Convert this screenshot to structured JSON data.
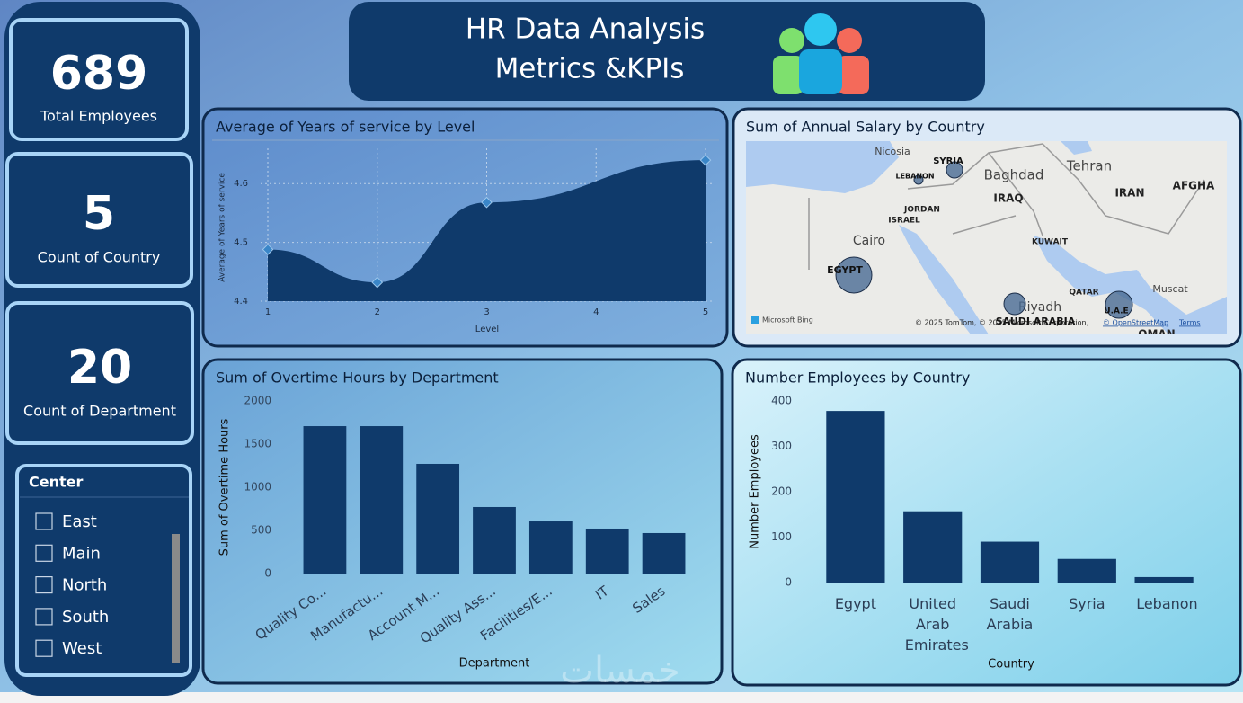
{
  "header": {
    "title_line1": "HR Data Analysis",
    "title_line2": "Metrics &KPIs"
  },
  "kpis": [
    {
      "value": 689,
      "label": "Total Employees"
    },
    {
      "value": 5,
      "label": "Count of Country"
    },
    {
      "value": 20,
      "label": "Count of Department"
    }
  ],
  "slicer": {
    "title": "Center",
    "items": [
      "East",
      "Main",
      "North",
      "South",
      "West"
    ]
  },
  "watermark": "خمسات",
  "chart_data": [
    {
      "type": "line",
      "title": "Average of Years of service by Level",
      "x_label": "Level",
      "y_label": "Average of Years of service",
      "x": [
        1,
        2,
        3,
        5
      ],
      "values": [
        4.488,
        4.432,
        4.568,
        4.64
      ],
      "color": "#0f3a6b",
      "xlim": [
        1,
        5
      ],
      "ylim": [
        4.4,
        4.66
      ],
      "xticks": [
        1,
        2,
        3,
        4,
        5
      ],
      "yticks": [
        4.4,
        4.5,
        4.6
      ],
      "grid": true
    },
    {
      "type": "map",
      "title": "Sum of Annual Salary by Country",
      "categories": [
        "EGYPT",
        "SYRIA",
        "LEBANON",
        "SAUDI ARABIA",
        "U.A.E"
      ],
      "values": [
        400,
        81,
        25,
        144,
        225
      ],
      "color": "#4a6b94",
      "places": [
        "Nicosia",
        "Baghdad",
        "Tehran",
        "IRAQ",
        "IRAN",
        "AFGHA",
        "JORDAN",
        "ISRAEL",
        "Cairo",
        "KUWAIT",
        "QATAR",
        "Riyadh",
        "Muscat",
        "OMAN"
      ],
      "logo": "Microsoft Bing",
      "attribution": "© 2025 TomTom, © 2025 Microsoft Corporation,",
      "osm": "© OpenStreetMap",
      "terms": "Terms"
    },
    {
      "type": "bar",
      "title": "Sum of Overtime Hours by Department",
      "x_label": "Department",
      "y_label": "Sum of Overtime Hours",
      "categories": [
        "Quality Co...",
        "Manufactu...",
        "Account M...",
        "Quality Ass...",
        "Facilities/E...",
        "IT",
        "Sales"
      ],
      "values": [
        1708,
        1708,
        1271,
        771,
        604,
        521,
        469
      ],
      "color": "#0f3a6b",
      "ylim": [
        0,
        2000
      ],
      "yticks": [
        0,
        500,
        1000,
        1500,
        2000
      ],
      "rotate_labels": true
    },
    {
      "type": "bar",
      "title": "Number Employees by Country",
      "x_label": "Country",
      "y_label": "Number Employees",
      "categories": [
        "Egypt",
        "United Arab Emirates",
        "Saudi Arabia",
        "Syria",
        "Lebanon"
      ],
      "values": [
        378,
        157,
        90,
        52,
        12
      ],
      "color": "#0f3a6b",
      "ylim": [
        0,
        400
      ],
      "yticks": [
        0,
        100,
        200,
        300,
        400
      ],
      "rotate_labels": false
    }
  ]
}
